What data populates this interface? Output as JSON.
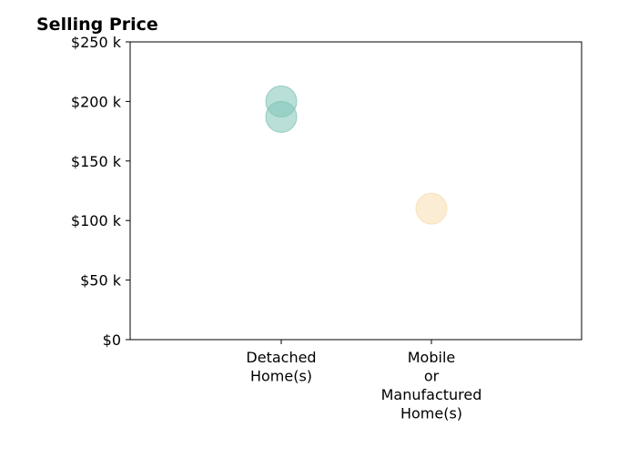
{
  "chart_data": {
    "type": "scatter",
    "title": "Selling Price",
    "xlabel": "",
    "ylabel": "",
    "categories": [
      [
        "Detached",
        "Home(s)"
      ],
      [
        "Mobile",
        "or",
        "Manufactured",
        "Home(s)"
      ]
    ],
    "ylim": [
      0,
      250000
    ],
    "yticks": [
      {
        "value": 0,
        "label": "$0"
      },
      {
        "value": 50000,
        "label": "$50 k"
      },
      {
        "value": 100000,
        "label": "$100 k"
      },
      {
        "value": 150000,
        "label": "$150 k"
      },
      {
        "value": 200000,
        "label": "$200 k"
      },
      {
        "value": 250000,
        "label": "$250 k"
      }
    ],
    "grid": false,
    "legend": "none",
    "points": [
      {
        "category": 0,
        "value": 200000,
        "color": "#7fc4b8"
      },
      {
        "category": 0,
        "value": 187000,
        "color": "#7fc4b8"
      },
      {
        "category": 1,
        "value": 110000,
        "color": "#f5deb0"
      }
    ]
  }
}
